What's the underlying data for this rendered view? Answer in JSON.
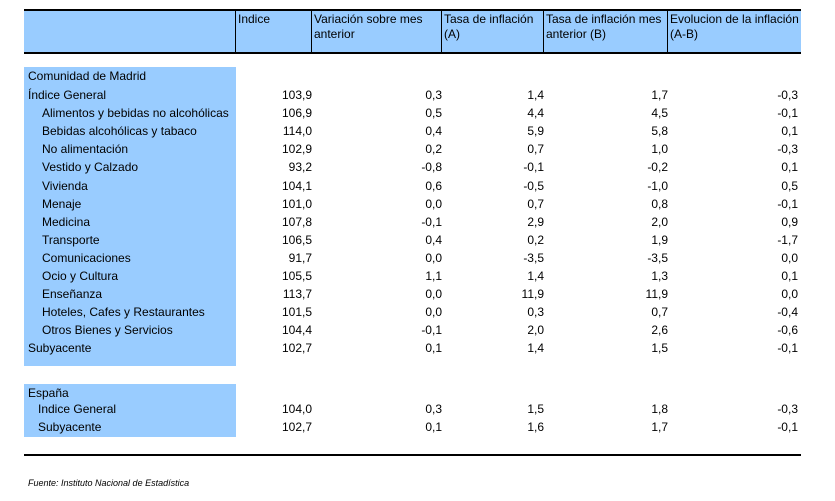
{
  "header": {
    "col_index": "Indice",
    "col_var": "Variación sobre mes anterior",
    "col_rate": "Tasa de inflación (A)",
    "col_rate_prev": "Tasa de inflación mes anterior (B)",
    "col_evol": "Evolucion de la inflación (A-B)"
  },
  "madrid": {
    "title": "Comunidad de Madrid",
    "rows": [
      {
        "label": "Índice General",
        "indice": "103,9",
        "var": "0,3",
        "tasa": "1,4",
        "tasa_ant": "1,7",
        "evol": "-0,3"
      },
      {
        "label": "Alimentos y bebidas no alcohólicas",
        "indice": "106,9",
        "var": "0,5",
        "tasa": "4,4",
        "tasa_ant": "4,5",
        "evol": "-0,1"
      },
      {
        "label": "Bebidas alcohólicas y tabaco",
        "indice": "114,0",
        "var": "0,4",
        "tasa": "5,9",
        "tasa_ant": "5,8",
        "evol": "0,1"
      },
      {
        "label": "No alimentación",
        "indice": "102,9",
        "var": "0,2",
        "tasa": "0,7",
        "tasa_ant": "1,0",
        "evol": "-0,3"
      },
      {
        "label": "Vestido y Calzado",
        "indice": "93,2",
        "var": "-0,8",
        "tasa": "-0,1",
        "tasa_ant": "-0,2",
        "evol": "0,1"
      },
      {
        "label": "Vivienda",
        "indice": "104,1",
        "var": "0,6",
        "tasa": "-0,5",
        "tasa_ant": "-1,0",
        "evol": "0,5"
      },
      {
        "label": "Menaje",
        "indice": "101,0",
        "var": "0,0",
        "tasa": "0,7",
        "tasa_ant": "0,8",
        "evol": "-0,1"
      },
      {
        "label": "Medicina",
        "indice": "107,8",
        "var": "-0,1",
        "tasa": "2,9",
        "tasa_ant": "2,0",
        "evol": "0,9"
      },
      {
        "label": "Transporte",
        "indice": "106,5",
        "var": "0,4",
        "tasa": "0,2",
        "tasa_ant": "1,9",
        "evol": "-1,7"
      },
      {
        "label": "Comunicaciones",
        "indice": "91,7",
        "var": "0,0",
        "tasa": "-3,5",
        "tasa_ant": "-3,5",
        "evol": "0,0"
      },
      {
        "label": "Ocio y Cultura",
        "indice": "105,5",
        "var": "1,1",
        "tasa": "1,4",
        "tasa_ant": "1,3",
        "evol": "0,1"
      },
      {
        "label": "Enseñanza",
        "indice": "113,7",
        "var": "0,0",
        "tasa": "11,9",
        "tasa_ant": "11,9",
        "evol": "0,0"
      },
      {
        "label": "Hoteles, Cafes y Restaurantes",
        "indice": "101,5",
        "var": "0,0",
        "tasa": "0,3",
        "tasa_ant": "0,7",
        "evol": "-0,4"
      },
      {
        "label": "Otros Bienes y Servicios",
        "indice": "104,4",
        "var": "-0,1",
        "tasa": "2,0",
        "tasa_ant": "2,6",
        "evol": "-0,6"
      },
      {
        "label": "Subyacente",
        "indice": "102,7",
        "var": "0,1",
        "tasa": "1,4",
        "tasa_ant": "1,5",
        "evol": "-0,1"
      }
    ]
  },
  "espana": {
    "title": "España",
    "rows": [
      {
        "label": "Indice General",
        "indice": "104,0",
        "var": "0,3",
        "tasa": "1,5",
        "tasa_ant": "1,8",
        "evol": "-0,3"
      },
      {
        "label": "Subyacente",
        "indice": "102,7",
        "var": "0,1",
        "tasa": "1,6",
        "tasa_ant": "1,7",
        "evol": "-0,1"
      }
    ]
  },
  "footer": {
    "source": "Fuente: Instituto Nacional de Estadística"
  }
}
